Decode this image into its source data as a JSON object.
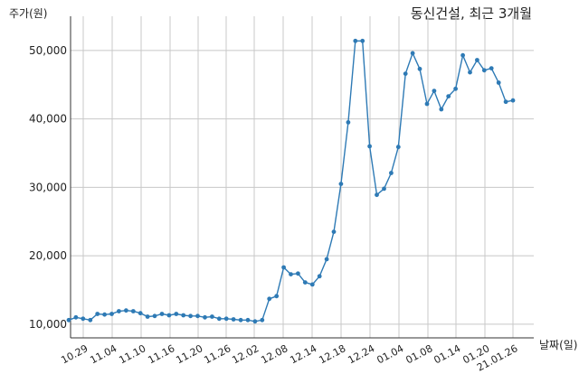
{
  "chart_data": {
    "type": "line",
    "title": "동신건설, 최근 3개월",
    "ylabel": "주가(원)",
    "xlabel": "날짜(일)",
    "ylim": [
      8000,
      55000
    ],
    "yticks": [
      10000,
      20000,
      30000,
      40000,
      50000
    ],
    "ytick_labels": [
      "10,000",
      "20,000",
      "30,000",
      "40,000",
      "50,000"
    ],
    "xtick_labels": [
      "10.29",
      "11.04",
      "11.10",
      "11.16",
      "11.20",
      "11.26",
      "12.02",
      "12.08",
      "12.14",
      "12.18",
      "12.24",
      "01.04",
      "01.08",
      "01.14",
      "01.20",
      "21.01.26"
    ],
    "grid": true,
    "color": "#2e7ab5",
    "series": [
      {
        "values": [
          10600,
          11000,
          10800,
          10600,
          11500,
          11400,
          11500,
          11900,
          12000,
          11900,
          11600,
          11100,
          11200,
          11500,
          11300,
          11500,
          11300,
          11200,
          11200,
          11000,
          11100,
          10800,
          10800,
          10700,
          10600,
          10600,
          10400,
          10600,
          13700,
          14100,
          18300,
          17300,
          17400,
          16100,
          15800,
          17000,
          19500,
          23500,
          30500,
          39500,
          51400,
          51400,
          36000,
          28900,
          29800,
          32100,
          35900,
          46600,
          49600,
          47300,
          42200,
          44100,
          41400,
          43300,
          44400,
          49300,
          46800,
          48600,
          47100,
          47400,
          45300,
          42500,
          42700
        ]
      }
    ]
  }
}
